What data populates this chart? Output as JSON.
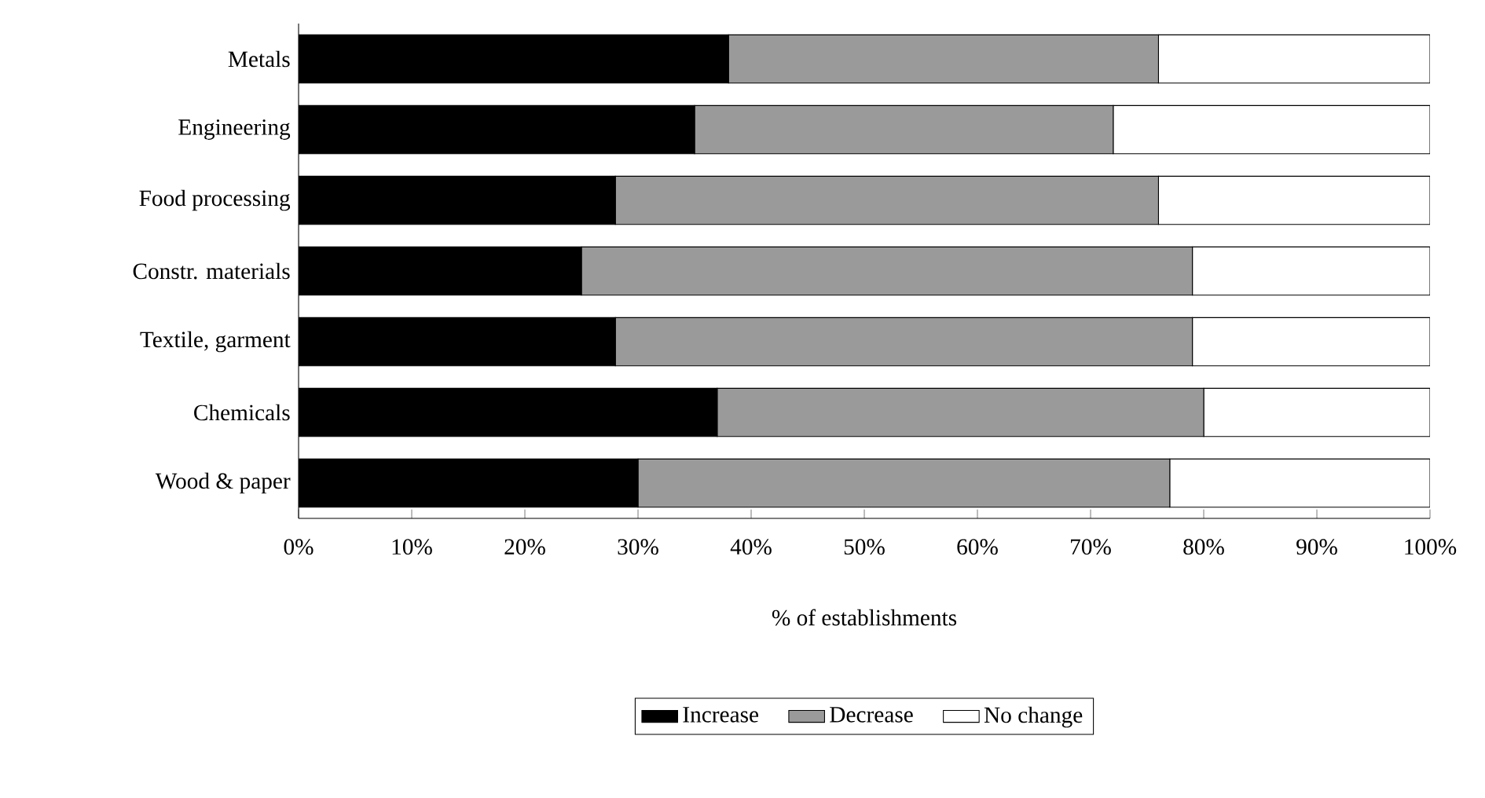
{
  "chart_data": {
    "type": "bar",
    "orientation": "horizontal",
    "stacked": true,
    "xlabel": "% of establishments",
    "categories": [
      "Metals",
      "Engineering",
      "Food processing",
      "Constr. materials",
      "Textile, garment",
      "Chemicals",
      "Wood & paper"
    ],
    "series": [
      {
        "name": "Increase",
        "color": "#000000",
        "values": [
          38,
          35,
          28,
          25,
          28,
          37,
          30
        ]
      },
      {
        "name": "Decrease",
        "color": "#9a9a9a",
        "values": [
          38,
          37,
          48,
          54,
          51,
          43,
          47
        ]
      },
      {
        "name": "No change",
        "color": "#ffffff",
        "values": [
          24,
          28,
          24,
          21,
          21,
          20,
          23
        ]
      }
    ],
    "xlim": [
      0,
      100
    ],
    "xticks": [
      {
        "value": 0,
        "label": "0%"
      },
      {
        "value": 10,
        "label": "10%"
      },
      {
        "value": 20,
        "label": "20%"
      },
      {
        "value": 30,
        "label": "30%"
      },
      {
        "value": 40,
        "label": "40%"
      },
      {
        "value": 50,
        "label": "50%"
      },
      {
        "value": 60,
        "label": "60%"
      },
      {
        "value": 70,
        "label": "70%"
      },
      {
        "value": 80,
        "label": "80%"
      },
      {
        "value": 90,
        "label": "90%"
      },
      {
        "value": 100,
        "label": "100%"
      }
    ],
    "grid": false,
    "legend": "bottom"
  }
}
